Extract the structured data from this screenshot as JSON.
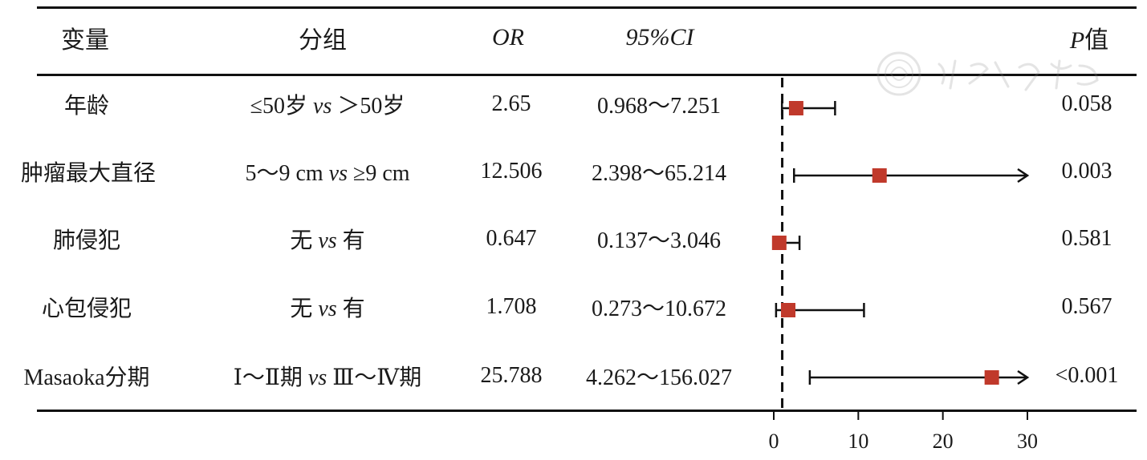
{
  "header": {
    "variable": "变量",
    "group": "分组",
    "or": "OR",
    "ci": "95%CI",
    "p_prefix": "P",
    "p_suffix": "值"
  },
  "rows": [
    {
      "variable": "年龄",
      "group_a": "≤50岁",
      "vs": "vs",
      "group_b": "＞50岁",
      "or": "2.65",
      "ci": "0.968～7.251",
      "p": "0.058"
    },
    {
      "variable": "肿瘤最大直径",
      "group_a": "5～9 cm",
      "vs": "vs",
      "group_b": "≥9 cm",
      "or": "12.506",
      "ci": "2.398～65.214",
      "p": "0.003"
    },
    {
      "variable": "肺侵犯",
      "group_a": "无",
      "vs": "vs",
      "group_b": "有",
      "or": "0.647",
      "ci": "0.137～3.046",
      "p": "0.581"
    },
    {
      "variable": "心包侵犯",
      "group_a": "无",
      "vs": "vs",
      "group_b": "有",
      "or": "1.708",
      "ci": "0.273～10.672",
      "p": "0.567"
    },
    {
      "variable": "Masaoka分期",
      "group_a": "Ⅰ～Ⅱ期",
      "vs": "vs",
      "group_b": "Ⅲ～Ⅳ期",
      "or": "25.788",
      "ci": "4.262～156.027",
      "p": "<0.001"
    }
  ],
  "chart_data": {
    "type": "forest",
    "x_ticks": [
      0,
      10,
      20,
      30
    ],
    "xlim": [
      0,
      30
    ],
    "reference_line": 1,
    "points": [
      {
        "or": 2.65,
        "lower": 0.968,
        "upper": 7.251
      },
      {
        "or": 12.506,
        "lower": 2.398,
        "upper": 65.214
      },
      {
        "or": 0.647,
        "lower": 0.137,
        "upper": 3.046
      },
      {
        "or": 1.708,
        "lower": 0.273,
        "upper": 10.672
      },
      {
        "or": 25.788,
        "lower": 4.262,
        "upper": 156.027
      }
    ],
    "marker_color": "#c0392b",
    "line_color": "#111111"
  }
}
